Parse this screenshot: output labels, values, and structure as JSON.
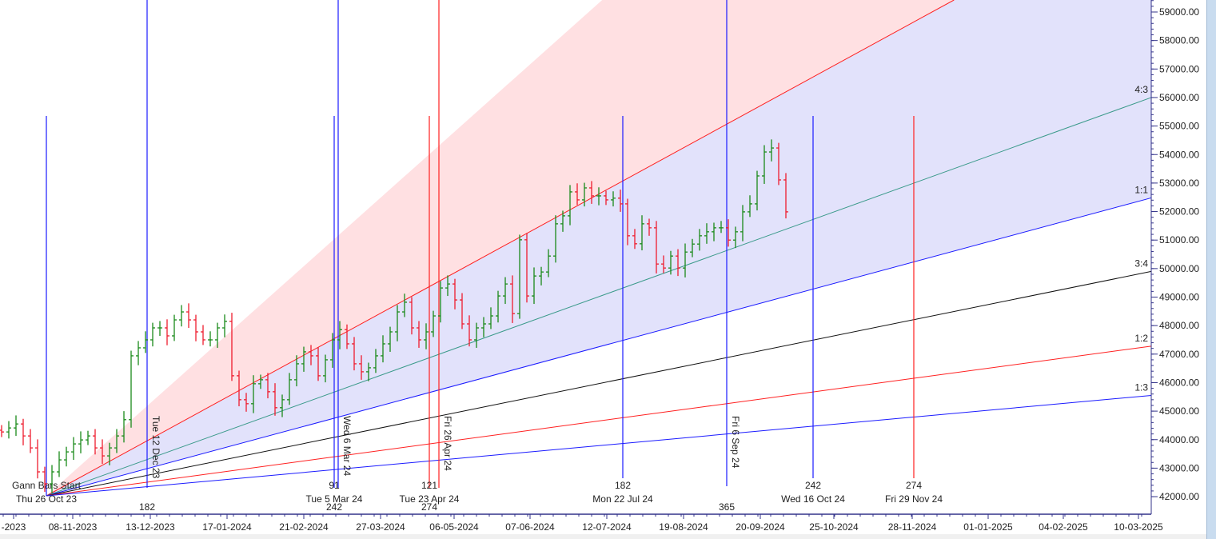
{
  "chart_data": {
    "type": "ohlc-bar",
    "y_axis": {
      "range": [
        41700,
        59400
      ],
      "ticks": [
        "59000.00",
        "58000.00",
        "57000.00",
        "56000.00",
        "55000.00",
        "54000.00",
        "53000.00",
        "52000.00",
        "51000.00",
        "50000.00",
        "49000.00",
        "48000.00",
        "47000.00",
        "46000.00",
        "45000.00",
        "44000.00",
        "43000.00",
        "42000.00"
      ]
    },
    "x_axis": {
      "ticks": [
        "-2023",
        "08-11-2023",
        "13-12-2023",
        "17-01-2024",
        "21-02-2024",
        "27-03-2024",
        "06-05-2024",
        "07-06-2024",
        "12-07-2024",
        "19-08-2024",
        "20-09-2024",
        "25-10-2024",
        "28-11-2024",
        "01-01-2025",
        "04-02-2025",
        "10-03-2025"
      ]
    },
    "closes": [
      44270,
      44410,
      44550,
      44130,
      43710,
      42870,
      42450,
      42870,
      43290,
      43570,
      43850,
      43990,
      44130,
      43710,
      43430,
      43710,
      44130,
      44700,
      46940,
      47220,
      47500,
      47920,
      47920,
      47640,
      48200,
      48480,
      48200,
      47780,
      47500,
      47500,
      47920,
      48150,
      46240,
      45400,
      45260,
      45960,
      46100,
      45680,
      45120,
      45400,
      46100,
      46660,
      47080,
      46940,
      46240,
      46800,
      47500,
      47860,
      47360,
      46660,
      46380,
      46520,
      46940,
      47360,
      47780,
      48480,
      48820,
      47920,
      47500,
      47780,
      48340,
      49320,
      49460,
      48900,
      48060,
      47500,
      47920,
      48060,
      48340,
      49040,
      49460,
      48420,
      51010,
      49040,
      49740,
      49880,
      50440,
      51570,
      51850,
      52690,
      52410,
      52830,
      52550,
      52550,
      52410,
      52470,
      52270,
      51150,
      50870,
      51570,
      51430,
      50160,
      50020,
      50440,
      50020,
      50580,
      50860,
      51150,
      51290,
      51430,
      51430,
      51000,
      51290,
      51990,
      52270,
      53250,
      54090,
      54230,
      53110,
      51990
    ],
    "up_color": "#1a8a1a",
    "down_color": "#ee1c2e",
    "gann_fan": {
      "origin_price": 42000,
      "lines": [
        {
          "label": "",
          "end_price": 76600,
          "color": "#ffb0b0"
        },
        {
          "label": "",
          "end_price": 63200,
          "color": "#ff2020"
        },
        {
          "label": "4:3",
          "end_price": 56000,
          "color": "#3a9a8a"
        },
        {
          "label": "1:1",
          "end_price": 52480,
          "color": "#1a1aff"
        },
        {
          "label": "3:4",
          "end_price": 49900,
          "color": "#111111"
        },
        {
          "label": "1:2",
          "end_price": 47280,
          "color": "#ff2020"
        },
        {
          "label": "1:3",
          "end_price": 45550,
          "color": "#1a1aff"
        }
      ],
      "fill_upper": "#ffe0e2",
      "fill_lower": "#e2e2fb"
    },
    "time_lines": [
      {
        "color": "#1a1aff",
        "count": "",
        "date": "Thu 26 Oct 23",
        "caption": "Gann Bars Start",
        "rotated": "",
        "below": ""
      },
      {
        "color": "#1a1aff",
        "count": "",
        "date": "",
        "caption": "",
        "rotated": "Tue 12 Dec 23",
        "below": "182"
      },
      {
        "color": "#1a1aff",
        "count": "91",
        "date": "Tue 5 Mar 24",
        "caption": "",
        "rotated": "",
        "below": "242"
      },
      {
        "color": "#1a1aff",
        "count": "",
        "date": "",
        "caption": "",
        "rotated": "Wed 6 Mar 24",
        "below": ""
      },
      {
        "color": "#ff2020",
        "count": "121",
        "date": "Tue 23 Apr 24",
        "caption": "",
        "rotated": "",
        "below": "274"
      },
      {
        "color": "#ff2020",
        "count": "",
        "date": "",
        "caption": "",
        "rotated": "Fri 26 Apr 24",
        "below": ""
      },
      {
        "color": "#1a1aff",
        "count": "182",
        "date": "Mon 22 Jul 24",
        "caption": "",
        "rotated": "",
        "below": ""
      },
      {
        "color": "#1a1aff",
        "count": "",
        "date": "",
        "caption": "",
        "rotated": "Fri 6 Sep 24",
        "below": "365"
      },
      {
        "color": "#1a1aff",
        "count": "242",
        "date": "Wed 16 Oct 24",
        "caption": "",
        "rotated": "",
        "below": ""
      },
      {
        "color": "#ff2020",
        "count": "274",
        "date": "Fri 29 Nov 24",
        "caption": "",
        "rotated": "",
        "below": ""
      }
    ]
  }
}
